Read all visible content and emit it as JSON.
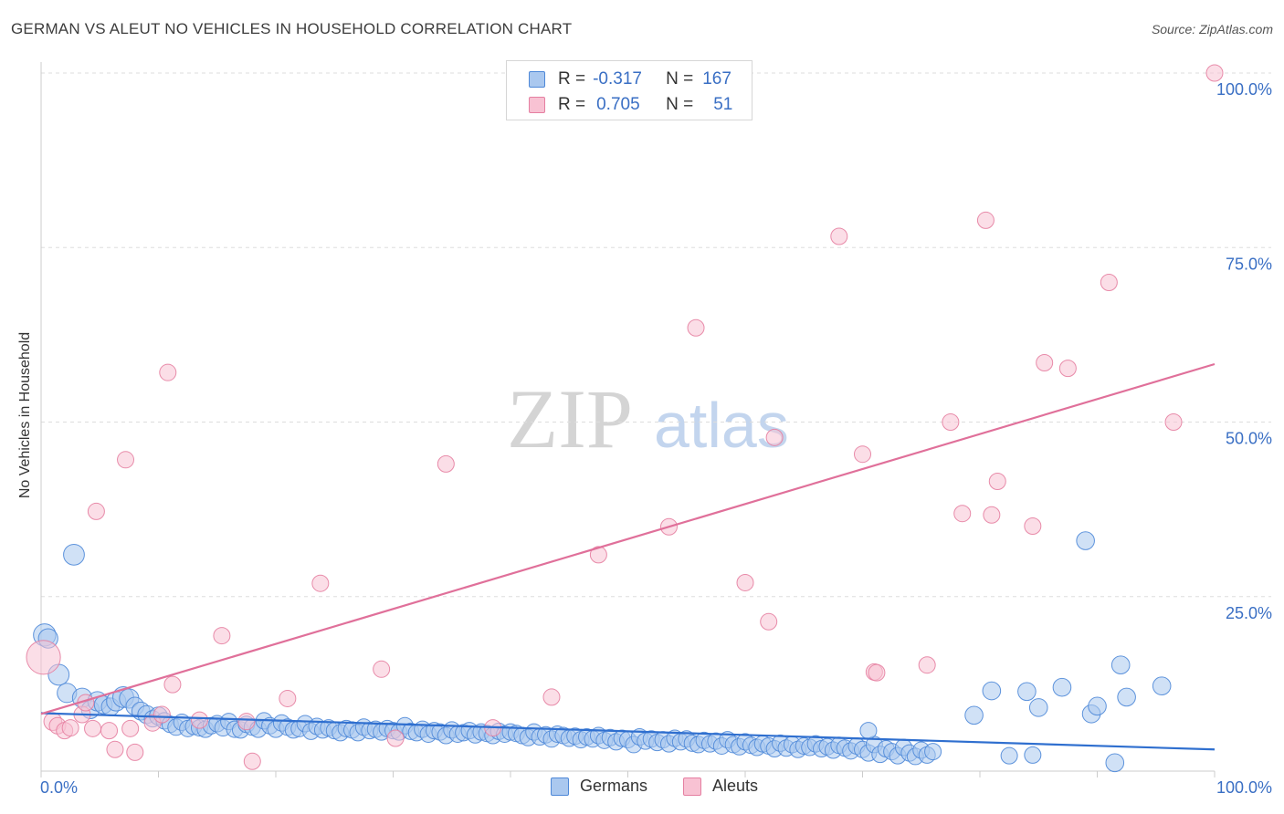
{
  "header": {
    "title": "GERMAN VS ALEUT NO VEHICLES IN HOUSEHOLD CORRELATION CHART",
    "source": "Source: ZipAtlas.com"
  },
  "watermark": {
    "zip": "ZIP",
    "atlas": "atlas"
  },
  "legend": {
    "series": [
      {
        "name": "Germans",
        "r_label": "R =",
        "r_value": "-0.317",
        "n_label": "N =",
        "n_value": "167",
        "fill": "#aac8ef",
        "stroke": "#4e88d8"
      },
      {
        "name": "Aleuts",
        "r_label": "R =",
        "r_value": "0.705",
        "n_label": "N =",
        "n_value": "51",
        "fill": "#f8c2d3",
        "stroke": "#e57fa1"
      }
    ]
  },
  "colors": {
    "german_line": "#2f6fcf",
    "aleut_line": "#e0709a",
    "axis_label": "#3a6fc4",
    "grid": "#dddddd"
  },
  "chart_data": {
    "type": "scatter",
    "title": "GERMAN VS ALEUT NO VEHICLES IN HOUSEHOLD CORRELATION CHART",
    "xlabel": "",
    "ylabel": "No Vehicles in Household",
    "xlim": [
      0,
      100
    ],
    "ylim": [
      0,
      100
    ],
    "x_tick_labels": {
      "left": "0.0%",
      "right": "100.0%"
    },
    "y_ticks": [
      {
        "value": 25,
        "label": "25.0%"
      },
      {
        "value": 50,
        "label": "50.0%"
      },
      {
        "value": 75,
        "label": "75.0%"
      },
      {
        "value": 100,
        "label": "100.0%"
      }
    ],
    "grid": true,
    "legend_position": "top-center",
    "series": [
      {
        "name": "Germans",
        "trend": {
          "x": [
            0,
            100
          ],
          "y": [
            8.3,
            3.1
          ]
        },
        "points": [
          [
            0.3,
            19.5,
            14
          ],
          [
            0.6,
            19,
            12
          ],
          [
            1.5,
            13.8,
            13
          ],
          [
            2.2,
            11.2,
            12
          ],
          [
            2.8,
            31,
            13
          ],
          [
            3.5,
            10.5,
            12
          ],
          [
            4.2,
            8.8,
            11
          ],
          [
            4.8,
            10,
            12
          ],
          [
            5.3,
            9.5,
            11
          ],
          [
            5.9,
            9.2,
            11
          ],
          [
            6.4,
            10,
            12
          ],
          [
            7,
            10.6,
            13
          ],
          [
            7.5,
            10.4,
            12
          ],
          [
            8,
            9.3,
            11
          ],
          [
            8.5,
            8.6,
            11
          ],
          [
            9,
            8.1,
            11
          ],
          [
            9.5,
            7.5,
            10
          ],
          [
            10,
            7.9,
            11
          ],
          [
            10.5,
            7.2,
            10
          ],
          [
            11,
            6.7,
            10
          ],
          [
            11.5,
            6.3,
            10
          ],
          [
            12,
            7,
            10
          ],
          [
            12.5,
            6.1,
            10
          ],
          [
            13,
            6.4,
            10
          ],
          [
            13.5,
            6.2,
            10
          ],
          [
            14,
            6,
            10
          ],
          [
            14.5,
            6.5,
            10
          ],
          [
            15,
            6.8,
            10
          ],
          [
            15.5,
            6.2,
            10
          ],
          [
            16,
            7.1,
            10
          ],
          [
            16.5,
            6,
            10
          ],
          [
            17,
            5.9,
            10
          ],
          [
            17.5,
            6.7,
            10
          ],
          [
            18,
            6.3,
            10
          ],
          [
            18.5,
            6,
            10
          ],
          [
            19,
            7.2,
            10
          ],
          [
            19.5,
            6.5,
            10
          ],
          [
            20,
            6,
            10
          ],
          [
            20.5,
            6.9,
            10
          ],
          [
            21,
            6.3,
            10
          ],
          [
            21.5,
            5.9,
            10
          ],
          [
            22,
            6.1,
            10
          ],
          [
            22.5,
            6.8,
            10
          ],
          [
            23,
            5.7,
            10
          ],
          [
            23.5,
            6.4,
            10
          ],
          [
            24,
            5.9,
            10
          ],
          [
            24.5,
            6.2,
            10
          ],
          [
            25,
            5.8,
            10
          ],
          [
            25.5,
            5.5,
            10
          ],
          [
            26,
            6.1,
            10
          ],
          [
            26.5,
            5.9,
            10
          ],
          [
            27,
            5.5,
            10
          ],
          [
            27.5,
            6.3,
            10
          ],
          [
            28,
            5.8,
            10
          ],
          [
            28.5,
            6,
            10
          ],
          [
            29,
            5.6,
            10
          ],
          [
            29.5,
            6.1,
            10
          ],
          [
            30,
            5.8,
            10
          ],
          [
            30.5,
            5.6,
            10
          ],
          [
            31,
            6.5,
            10
          ],
          [
            31.5,
            5.7,
            10
          ],
          [
            32,
            5.5,
            10
          ],
          [
            32.5,
            6,
            10
          ],
          [
            33,
            5.3,
            10
          ],
          [
            33.5,
            5.8,
            10
          ],
          [
            34,
            5.6,
            10
          ],
          [
            34.5,
            5.1,
            10
          ],
          [
            35,
            5.9,
            10
          ],
          [
            35.5,
            5.3,
            10
          ],
          [
            36,
            5.5,
            10
          ],
          [
            36.5,
            5.8,
            10
          ],
          [
            37,
            5.2,
            10
          ],
          [
            37.5,
            5.6,
            10
          ],
          [
            38,
            5.4,
            10
          ],
          [
            38.5,
            5.1,
            10
          ],
          [
            39,
            5.7,
            10
          ],
          [
            39.5,
            5.3,
            10
          ],
          [
            40,
            5.6,
            10
          ],
          [
            40.5,
            5.4,
            10
          ],
          [
            41,
            5.1,
            10
          ],
          [
            41.5,
            4.8,
            10
          ],
          [
            42,
            5.6,
            10
          ],
          [
            42.5,
            4.9,
            10
          ],
          [
            43,
            5.2,
            10
          ],
          [
            43.5,
            4.6,
            10
          ],
          [
            44,
            5.3,
            10
          ],
          [
            44.5,
            5.1,
            10
          ],
          [
            45,
            4.7,
            10
          ],
          [
            45.5,
            5,
            10
          ],
          [
            46,
            4.5,
            10
          ],
          [
            46.5,
            4.9,
            10
          ],
          [
            47,
            4.6,
            10
          ],
          [
            47.5,
            5.1,
            10
          ],
          [
            48,
            4.4,
            10
          ],
          [
            48.5,
            4.8,
            10
          ],
          [
            49,
            4.2,
            10
          ],
          [
            49.5,
            4.7,
            10
          ],
          [
            50,
            4.5,
            10
          ],
          [
            50.5,
            3.8,
            10
          ],
          [
            51,
            4.9,
            10
          ],
          [
            51.5,
            4.3,
            10
          ],
          [
            52,
            4.6,
            10
          ],
          [
            52.5,
            4.1,
            10
          ],
          [
            53,
            4.5,
            10
          ],
          [
            53.5,
            3.9,
            10
          ],
          [
            54,
            4.7,
            10
          ],
          [
            54.5,
            4.2,
            10
          ],
          [
            55,
            4.6,
            10
          ],
          [
            55.5,
            4,
            10
          ],
          [
            56,
            3.8,
            10
          ],
          [
            56.5,
            4.4,
            10
          ],
          [
            57,
            3.9,
            10
          ],
          [
            57.5,
            4.3,
            10
          ],
          [
            58,
            3.6,
            10
          ],
          [
            58.5,
            4.5,
            10
          ],
          [
            59,
            3.8,
            10
          ],
          [
            59.5,
            3.5,
            10
          ],
          [
            60,
            4.2,
            10
          ],
          [
            60.5,
            3.7,
            10
          ],
          [
            61,
            3.4,
            10
          ],
          [
            61.5,
            3.9,
            10
          ],
          [
            62,
            3.6,
            10
          ],
          [
            62.5,
            3.2,
            10
          ],
          [
            63,
            4,
            10
          ],
          [
            63.5,
            3.3,
            10
          ],
          [
            64,
            3.8,
            10
          ],
          [
            64.5,
            3.1,
            10
          ],
          [
            65,
            3.6,
            10
          ],
          [
            65.5,
            3.4,
            10
          ],
          [
            66,
            3.9,
            10
          ],
          [
            66.5,
            3.2,
            10
          ],
          [
            67,
            3.5,
            10
          ],
          [
            67.5,
            3,
            10
          ],
          [
            68,
            3.7,
            10
          ],
          [
            68.5,
            3.3,
            10
          ],
          [
            69,
            2.9,
            10
          ],
          [
            69.5,
            3.6,
            10
          ],
          [
            70,
            3.1,
            10
          ],
          [
            70.5,
            2.6,
            10
          ],
          [
            71,
            3.8,
            10
          ],
          [
            71.5,
            2.4,
            10
          ],
          [
            72,
            3.2,
            10
          ],
          [
            72.5,
            2.8,
            10
          ],
          [
            73,
            2.2,
            10
          ],
          [
            73.5,
            3.4,
            10
          ],
          [
            74,
            2.6,
            10
          ],
          [
            74.5,
            2.1,
            10
          ],
          [
            75,
            3,
            10
          ],
          [
            75.5,
            2.3,
            10
          ],
          [
            76,
            2.8,
            10
          ],
          [
            70.5,
            5.8,
            10
          ],
          [
            79.5,
            8,
            11
          ],
          [
            81,
            11.5,
            11
          ],
          [
            84,
            11.4,
            11
          ],
          [
            85,
            9.1,
            11
          ],
          [
            87,
            12,
            11
          ],
          [
            89,
            33,
            11
          ],
          [
            89.5,
            8.2,
            11
          ],
          [
            90,
            9.3,
            11
          ],
          [
            92,
            15.2,
            11
          ],
          [
            92.5,
            10.6,
            11
          ],
          [
            95.5,
            12.2,
            11
          ],
          [
            91.5,
            1.2,
            11
          ],
          [
            82.5,
            2.2,
            10
          ],
          [
            84.5,
            2.3,
            10
          ]
        ]
      },
      {
        "name": "Aleuts",
        "trend": {
          "x": [
            0,
            100
          ],
          "y": [
            8.2,
            58.3
          ]
        },
        "points": [
          [
            0.2,
            16.3,
            22
          ],
          [
            1,
            7.1,
            11
          ],
          [
            1.4,
            6.5,
            10
          ],
          [
            2,
            5.8,
            10
          ],
          [
            2.5,
            6.2,
            10
          ],
          [
            3.5,
            8.1,
            10
          ],
          [
            3.8,
            9.8,
            10
          ],
          [
            4.4,
            6.1,
            10
          ],
          [
            4.7,
            37.2,
            10
          ],
          [
            5.8,
            5.8,
            10
          ],
          [
            6.3,
            3.1,
            10
          ],
          [
            7.2,
            44.6,
            10
          ],
          [
            7.6,
            6.1,
            10
          ],
          [
            8,
            2.7,
            10
          ],
          [
            9.5,
            6.9,
            10
          ],
          [
            10.3,
            8.1,
            10
          ],
          [
            10.8,
            57.1,
            10
          ],
          [
            11.2,
            12.4,
            10
          ],
          [
            15.4,
            19.4,
            10
          ],
          [
            18,
            1.4,
            10
          ],
          [
            21,
            10.4,
            10
          ],
          [
            23.8,
            26.9,
            10
          ],
          [
            29,
            14.6,
            10
          ],
          [
            30.2,
            4.7,
            10
          ],
          [
            34.5,
            44,
            10
          ],
          [
            43.5,
            10.6,
            10
          ],
          [
            47.5,
            31,
            10
          ],
          [
            53.5,
            35,
            10
          ],
          [
            55.8,
            63.5,
            10
          ],
          [
            60,
            27,
            10
          ],
          [
            62,
            21.4,
            10
          ],
          [
            62.5,
            47.8,
            10
          ],
          [
            68,
            76.6,
            10
          ],
          [
            70,
            45.4,
            10
          ],
          [
            71,
            14.2,
            10
          ],
          [
            71.2,
            14.1,
            10
          ],
          [
            75.5,
            15.2,
            10
          ],
          [
            77.5,
            50,
            10
          ],
          [
            78.5,
            36.9,
            10
          ],
          [
            80.5,
            78.9,
            10
          ],
          [
            81,
            36.7,
            10
          ],
          [
            81.5,
            41.5,
            10
          ],
          [
            84.5,
            35.1,
            10
          ],
          [
            85.5,
            58.5,
            10
          ],
          [
            87.5,
            57.7,
            10
          ],
          [
            91,
            70,
            10
          ],
          [
            96.5,
            50,
            10
          ],
          [
            100,
            100,
            10
          ],
          [
            17.5,
            7.1,
            10
          ],
          [
            13.5,
            7.3,
            10
          ],
          [
            38.5,
            6.2,
            10
          ]
        ]
      }
    ]
  }
}
